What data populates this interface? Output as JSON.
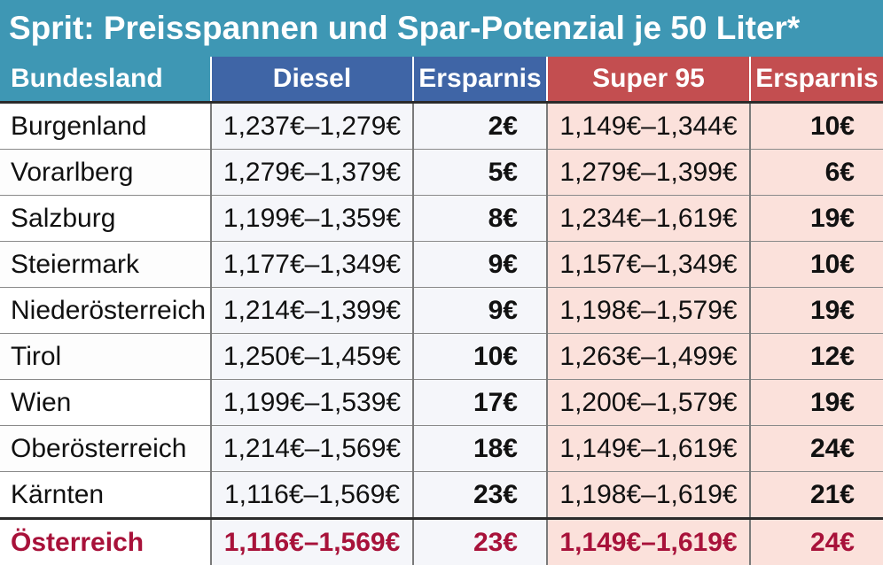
{
  "title": "Sprit: Preisspannen und Spar-Potenzial je 50 Liter*",
  "chart_data": {
    "type": "table",
    "title": "Sprit: Preisspannen und Spar-Potenzial je 50 Liter*",
    "columns": [
      "Bundesland",
      "Diesel",
      "Ersparnis",
      "Super 95",
      "Ersparnis"
    ],
    "rows": [
      {
        "region": "Burgenland",
        "diesel": "1,237€–1,279€",
        "diesel_savings": "2€",
        "super95": "1,149€–1,344€",
        "super95_savings": "10€"
      },
      {
        "region": "Vorarlberg",
        "diesel": "1,279€–1,379€",
        "diesel_savings": "5€",
        "super95": "1,279€–1,399€",
        "super95_savings": "6€"
      },
      {
        "region": "Salzburg",
        "diesel": "1,199€–1,359€",
        "diesel_savings": "8€",
        "super95": "1,234€–1,619€",
        "super95_savings": "19€"
      },
      {
        "region": "Steiermark",
        "diesel": "1,177€–1,349€",
        "diesel_savings": "9€",
        "super95": "1,157€–1,349€",
        "super95_savings": "10€"
      },
      {
        "region": "Niederösterreich",
        "diesel": "1,214€–1,399€",
        "diesel_savings": "9€",
        "super95": "1,198€–1,579€",
        "super95_savings": "19€"
      },
      {
        "region": "Tirol",
        "diesel": "1,250€–1,459€",
        "diesel_savings": "10€",
        "super95": "1,263€–1,499€",
        "super95_savings": "12€"
      },
      {
        "region": "Wien",
        "diesel": "1,199€–1,539€",
        "diesel_savings": "17€",
        "super95": "1,200€–1,579€",
        "super95_savings": "19€"
      },
      {
        "region": "Oberösterreich",
        "diesel": "1,214€–1,569€",
        "diesel_savings": "18€",
        "super95": "1,149€–1,619€",
        "super95_savings": "24€"
      },
      {
        "region": "Kärnten",
        "diesel": "1,116€–1,569€",
        "diesel_savings": "23€",
        "super95": "1,198€–1,619€",
        "super95_savings": "21€"
      }
    ],
    "total": {
      "region": "Österreich",
      "diesel": "1,116€–1,569€",
      "diesel_savings": "23€",
      "super95": "1,149€–1,619€",
      "super95_savings": "24€"
    }
  },
  "colors": {
    "title_bg": "#3e97b4",
    "diesel_header": "#3f65a6",
    "super_header": "#c34e50",
    "total_text": "#a8123a",
    "super_cell_bg": "#fbe1db"
  }
}
